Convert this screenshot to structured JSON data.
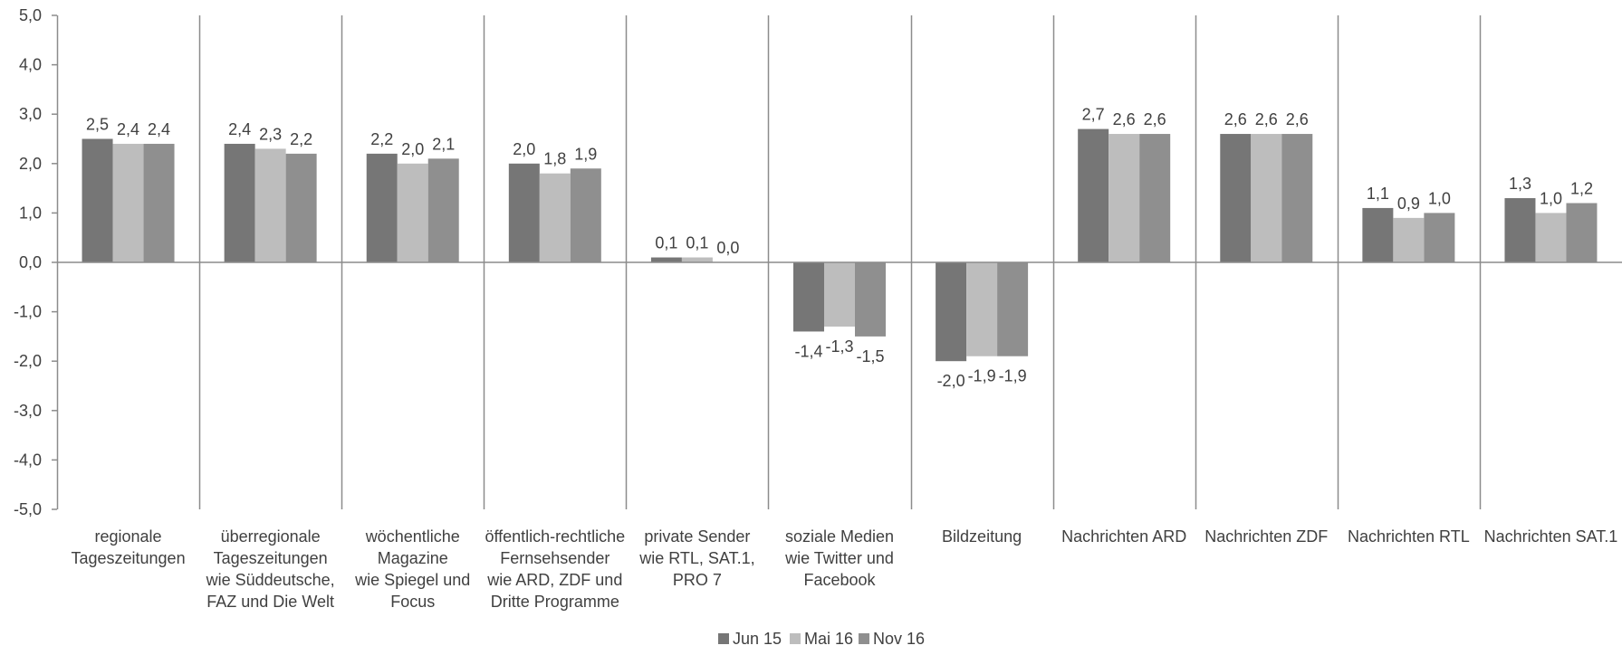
{
  "chart_data": {
    "type": "bar",
    "title": "",
    "xlabel": "",
    "ylabel": "",
    "ylim": [
      -5,
      5
    ],
    "y_ticks": [
      "5,0",
      "4,0",
      "3,0",
      "2,0",
      "1,0",
      "0,0",
      "-1,0",
      "-2,0",
      "-3,0",
      "-4,0",
      "-5,0"
    ],
    "categories": [
      [
        "regionale",
        "Tageszeitungen"
      ],
      [
        "überregionale",
        "Tageszeitungen",
        "wie Süddeutsche,",
        "FAZ und Die Welt"
      ],
      [
        "wöchentliche",
        "Magazine",
        "wie Spiegel und",
        "Focus"
      ],
      [
        "öffentlich-rechtliche",
        "Fernsehsender",
        "wie ARD, ZDF und",
        "Dritte Programme"
      ],
      [
        "private Sender",
        "wie RTL, SAT.1,",
        "PRO 7"
      ],
      [
        "soziale Medien",
        "wie Twitter und",
        "Facebook"
      ],
      [
        "Bildzeitung"
      ],
      [
        "Nachrichten ARD"
      ],
      [
        "Nachrichten ZDF"
      ],
      [
        "Nachrichten RTL"
      ],
      [
        "Nachrichten SAT.1"
      ]
    ],
    "series": [
      {
        "name": "Jun 15",
        "color": "#767676",
        "values": [
          2.5,
          2.4,
          2.2,
          2.0,
          0.1,
          -1.4,
          -2.0,
          2.7,
          2.6,
          1.1,
          1.3
        ],
        "labels": [
          "2,5",
          "2,4",
          "2,2",
          "2,0",
          "0,1",
          "-1,4",
          "-2,0",
          "2,7",
          "2,6",
          "1,1",
          "1,3"
        ]
      },
      {
        "name": "Mai 16",
        "color": "#bdbdbd",
        "values": [
          2.4,
          2.3,
          2.0,
          1.8,
          0.1,
          -1.3,
          -1.9,
          2.6,
          2.6,
          0.9,
          1.0
        ],
        "labels": [
          "2,4",
          "2,3",
          "2,0",
          "1,8",
          "0,1",
          "-1,3",
          "-1,9",
          "2,6",
          "2,6",
          "0,9",
          "1,0"
        ]
      },
      {
        "name": "Nov 16",
        "color": "#8f8f8f",
        "values": [
          2.4,
          2.2,
          2.1,
          1.9,
          0.0,
          -1.5,
          -1.9,
          2.6,
          2.6,
          1.0,
          1.2
        ],
        "labels": [
          "2,4",
          "2,2",
          "2,1",
          "1,9",
          "0,0",
          "-1,5",
          "-1,9",
          "2,6",
          "2,6",
          "1,0",
          "1,2"
        ]
      }
    ],
    "grid": false,
    "category_separators": true,
    "legend_position": "bottom-center"
  }
}
